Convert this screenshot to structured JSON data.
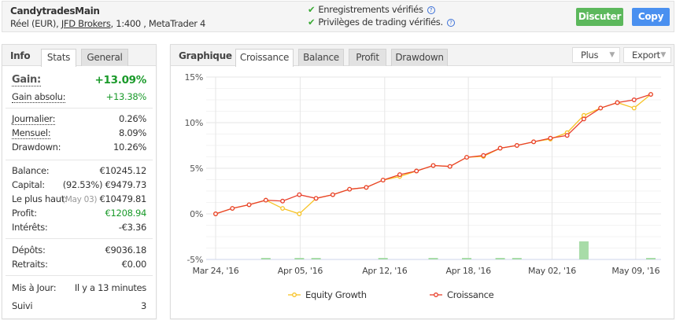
{
  "header": {
    "account_name": "CandytradesMain",
    "account_sub_prefix": "Réel (EUR), ",
    "broker": "JFD Brokers",
    "account_sub_suffix": ", 1:400 , MetaTrader 4",
    "verified_records": "Enregistrements vérifiés",
    "verified_privileges": "Privilèges de trading vérifiés.",
    "help_glyph": "?",
    "discuss_label": "Discuter",
    "copy_label": "Copy",
    "colors": {
      "discuss": "#5cb85c",
      "copy": "#4a90f0"
    }
  },
  "info": {
    "title": "Info",
    "tabs": [
      "Stats",
      "General"
    ],
    "gain_label": "Gain:",
    "gain_value": "+13.09%",
    "abs_gain_label": "Gain absolu:",
    "abs_gain_value": "+13.38%",
    "daily_label": "Journalier:",
    "daily_value": "0.26%",
    "monthly_label": "Mensuel:",
    "monthly_value": "8.09%",
    "drawdown_label": "Drawdown:",
    "drawdown_value": "10.26%",
    "balance_label": "Balance:",
    "balance_value": "€10245.12",
    "equity_label": "Capital:",
    "equity_pct": "(92.53%)",
    "equity_value": "€9479.73",
    "highest_label": "Le plus haut:",
    "highest_date": "(May 03)",
    "highest_value": "€10479.81",
    "profit_label": "Profit:",
    "profit_value": "€1208.94",
    "interest_label": "Intérêts:",
    "interest_value": "-€3.36",
    "deposits_label": "Dépôts:",
    "deposits_value": "€9036.18",
    "withdrawals_label": "Retraits:",
    "withdrawals_value": "€0.00",
    "updated_label": "Mis à Jour:",
    "updated_value": "Il y a 13 minutes",
    "followers_label": "Suivi",
    "followers_value": "3"
  },
  "chart_panel": {
    "title": "Graphique",
    "tabs": [
      "Croissance",
      "Balance",
      "Profit",
      "Drawdown"
    ],
    "more_label": "Plus",
    "export_label": "Export"
  },
  "chart_data": {
    "type": "line",
    "ylim": [
      -5,
      15
    ],
    "yticks": [
      {
        "v": 15,
        "label": "15%"
      },
      {
        "v": 10,
        "label": "10%"
      },
      {
        "v": 5,
        "label": "5%"
      },
      {
        "v": 0,
        "label": "0%"
      },
      {
        "v": -5,
        "label": "-5%"
      }
    ],
    "xticks": [
      {
        "i": 0,
        "label": "Mar 24, '16"
      },
      {
        "i": 5.05,
        "label": "Apr 05, '16"
      },
      {
        "i": 10.1,
        "label": "Apr 12, '16"
      },
      {
        "i": 15.1,
        "label": "Apr 18, '16"
      },
      {
        "i": 20.1,
        "label": "May 02, '16"
      },
      {
        "i": 25.1,
        "label": "May 09, '16"
      }
    ],
    "series": [
      {
        "name": "Equity Growth",
        "color": "#f7c325",
        "values": [
          0,
          0.6,
          1.0,
          1.5,
          0.6,
          0.0,
          1.7,
          2.1,
          2.7,
          2.9,
          3.7,
          4.1,
          4.7,
          5.3,
          5.2,
          6.2,
          6.3,
          7.2,
          7.5,
          7.9,
          8.2,
          8.9,
          10.8,
          11.6,
          12.2,
          11.6,
          13.1
        ]
      },
      {
        "name": "Croissance",
        "color": "#e8402c",
        "values": [
          0,
          0.6,
          1.0,
          1.5,
          1.4,
          2.1,
          1.7,
          2.1,
          2.7,
          2.9,
          3.7,
          4.3,
          4.7,
          5.3,
          5.2,
          6.2,
          6.4,
          7.2,
          7.5,
          7.9,
          8.3,
          8.6,
          10.4,
          11.6,
          12.2,
          12.5,
          13.1
        ]
      }
    ],
    "bars": {
      "color": "#a8dca8",
      "values": [
        0,
        0,
        0,
        0.04,
        0,
        0.04,
        0.04,
        0,
        0,
        0,
        0.04,
        0,
        0,
        0.04,
        0,
        0.04,
        0,
        0.04,
        0.04,
        0,
        0,
        0,
        1,
        0,
        0,
        0,
        0.04
      ]
    },
    "legend_position": "bottom"
  }
}
